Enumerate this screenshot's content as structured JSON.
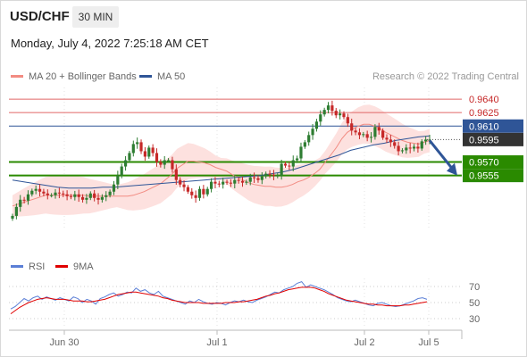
{
  "header": {
    "symbol": "USD/CHF",
    "timeframe": "30 MIN",
    "datetime": "Monday, July 4, 2022 7:25:18 AM CET"
  },
  "legend": {
    "ma20_label": "MA 20 + Bollinger Bands",
    "ma20_color": "#f28b82",
    "ma50_label": "MA 50",
    "ma50_color": "#2f5597"
  },
  "copyright": "Research © 2022 Trading Central",
  "rsi_legend": {
    "rsi_label": "RSI",
    "rsi_color": "#5b7fd6",
    "ma_label": "9MA",
    "ma_color": "#e00000"
  },
  "colors": {
    "up_candle": "#2e7d32",
    "down_candle": "#c62828",
    "resistance": "#e06666",
    "pivot": "#2f5597",
    "support": "#2a8a00",
    "price_tag": "#333333",
    "bollinger_fill": "#fde1df",
    "arrow": "#2f5597"
  },
  "chart_data": {
    "type": "candlestick",
    "x_ticks": [
      "Jun 30",
      "Jul 1",
      "Jul 2",
      "Jul 5"
    ],
    "ylim": [
      0.9496,
      0.9653
    ],
    "levels": [
      {
        "value": "0.9640",
        "kind": "resistance"
      },
      {
        "value": "0.9625",
        "kind": "resistance"
      },
      {
        "value": "0.9610",
        "kind": "pivot"
      },
      {
        "value": "0.9595",
        "kind": "last"
      },
      {
        "value": "0.9570",
        "kind": "support"
      },
      {
        "value": "0.9555",
        "kind": "support"
      }
    ],
    "closes": [
      0.951,
      0.952,
      0.9528,
      0.9527,
      0.9534,
      0.9538,
      0.954,
      0.9537,
      0.9535,
      0.9533,
      0.9533,
      0.9536,
      0.9535,
      0.9534,
      0.9532,
      0.9531,
      0.9534,
      0.9531,
      0.9528,
      0.953,
      0.9535,
      0.953,
      0.9528,
      0.9531,
      0.9533,
      0.9537,
      0.9545,
      0.9555,
      0.9565,
      0.9572,
      0.958,
      0.959,
      0.9592,
      0.9582,
      0.9576,
      0.9586,
      0.958,
      0.957,
      0.9567,
      0.9572,
      0.9572,
      0.9562,
      0.955,
      0.9545,
      0.9542,
      0.9537,
      0.9533,
      0.953,
      0.954,
      0.9534,
      0.954,
      0.9548,
      0.9546,
      0.9545,
      0.9548,
      0.9547,
      0.9546,
      0.955,
      0.9549,
      0.9547,
      0.9548,
      0.9553,
      0.9552,
      0.955,
      0.9554,
      0.9557,
      0.9556,
      0.9555,
      0.9555,
      0.9568,
      0.9566,
      0.9565,
      0.9572,
      0.9574,
      0.9587,
      0.9592,
      0.96,
      0.9607,
      0.9615,
      0.9623,
      0.9628,
      0.9633,
      0.9627,
      0.9622,
      0.9624,
      0.962,
      0.9613,
      0.9605,
      0.9603,
      0.96,
      0.9601,
      0.9597,
      0.9598,
      0.9609,
      0.9605,
      0.9597,
      0.9595,
      0.9592,
      0.9588,
      0.9582,
      0.9583,
      0.9586,
      0.9585,
      0.9587,
      0.9585,
      0.9593,
      0.9595,
      0.9595
    ],
    "ma20": [
      0.9521,
      0.9523,
      0.9525,
      0.9527,
      0.9529,
      0.9531,
      0.9533,
      0.9533,
      0.9533,
      0.9533,
      0.9533,
      0.9533,
      0.9533,
      0.9533,
      0.9532,
      0.9532,
      0.9532,
      0.9532,
      0.9532,
      0.9532,
      0.9532,
      0.9532,
      0.9533,
      0.9535,
      0.9537,
      0.954,
      0.9543,
      0.9546,
      0.9551,
      0.9556,
      0.9563,
      0.9567,
      0.9571,
      0.9571,
      0.957,
      0.9569,
      0.9567,
      0.9564,
      0.9562,
      0.956,
      0.9556,
      0.9553,
      0.955,
      0.9547,
      0.9545,
      0.9544,
      0.9543,
      0.9543,
      0.9542,
      0.9542,
      0.9543,
      0.9545,
      0.9548,
      0.955,
      0.9553,
      0.9557,
      0.9562,
      0.957,
      0.9578,
      0.9586,
      0.9596,
      0.9603,
      0.9607,
      0.961,
      0.9612,
      0.9612,
      0.961,
      0.9607,
      0.9603,
      0.96,
      0.9597,
      0.9594,
      0.9592,
      0.9591,
      0.959,
      0.9592,
      0.9594
    ],
    "ma50": [
      0.955,
      0.9548,
      0.9546,
      0.9544,
      0.9542,
      0.9541,
      0.9541,
      0.9541,
      0.9542,
      0.9542,
      0.9543,
      0.9544,
      0.9545,
      0.9546,
      0.9547,
      0.9548,
      0.9549,
      0.955,
      0.9551,
      0.9552,
      0.9553,
      0.9554,
      0.9555,
      0.9557,
      0.9559,
      0.9562,
      0.9566,
      0.957,
      0.9574,
      0.9578,
      0.9583,
      0.9586,
      0.9589,
      0.9591,
      0.9594,
      0.9596,
      0.9598,
      0.9599
    ],
    "rsi_ticks": [
      "70",
      "50",
      "30"
    ],
    "rsi_ylim": [
      20,
      80
    ],
    "rsi": [
      42,
      45,
      50,
      55,
      52,
      56,
      58,
      54,
      57,
      55,
      53,
      56,
      54,
      52,
      57,
      55,
      50,
      54,
      52,
      48,
      55,
      57,
      60,
      62,
      58,
      60,
      63,
      62,
      68,
      64,
      66,
      62,
      60,
      64,
      58,
      56,
      54,
      52,
      50,
      48,
      52,
      50,
      54,
      51,
      49,
      48,
      50,
      49,
      47,
      50,
      52,
      51,
      53,
      51,
      50,
      53,
      55,
      57,
      60,
      63,
      62,
      66,
      68,
      70,
      74,
      76,
      69,
      72,
      70,
      68,
      66,
      63,
      60,
      56,
      54,
      52,
      51,
      53,
      51,
      49,
      47,
      46,
      49,
      50,
      48,
      46,
      45,
      46,
      48,
      50,
      52,
      55,
      56,
      54
    ],
    "rsi_ma": [
      36,
      40,
      44,
      47,
      50,
      52,
      54,
      55,
      56,
      55,
      54,
      54,
      54,
      53,
      52,
      52,
      52,
      51,
      51,
      52,
      53,
      54,
      56,
      58,
      60,
      61,
      62,
      63,
      63,
      62,
      61,
      60,
      59,
      58,
      56,
      55,
      53,
      52,
      51,
      50,
      50,
      50,
      50,
      49,
      49,
      49,
      49,
      49,
      50,
      50,
      50,
      51,
      51,
      52,
      53,
      54,
      56,
      58,
      59,
      61,
      62,
      64,
      66,
      67,
      68,
      69,
      69,
      69,
      68,
      66,
      64,
      61,
      59,
      57,
      55,
      53,
      52,
      51,
      50,
      49,
      48,
      48,
      47,
      47,
      46,
      46,
      46,
      46,
      47,
      47,
      48,
      49,
      50,
      51
    ]
  }
}
